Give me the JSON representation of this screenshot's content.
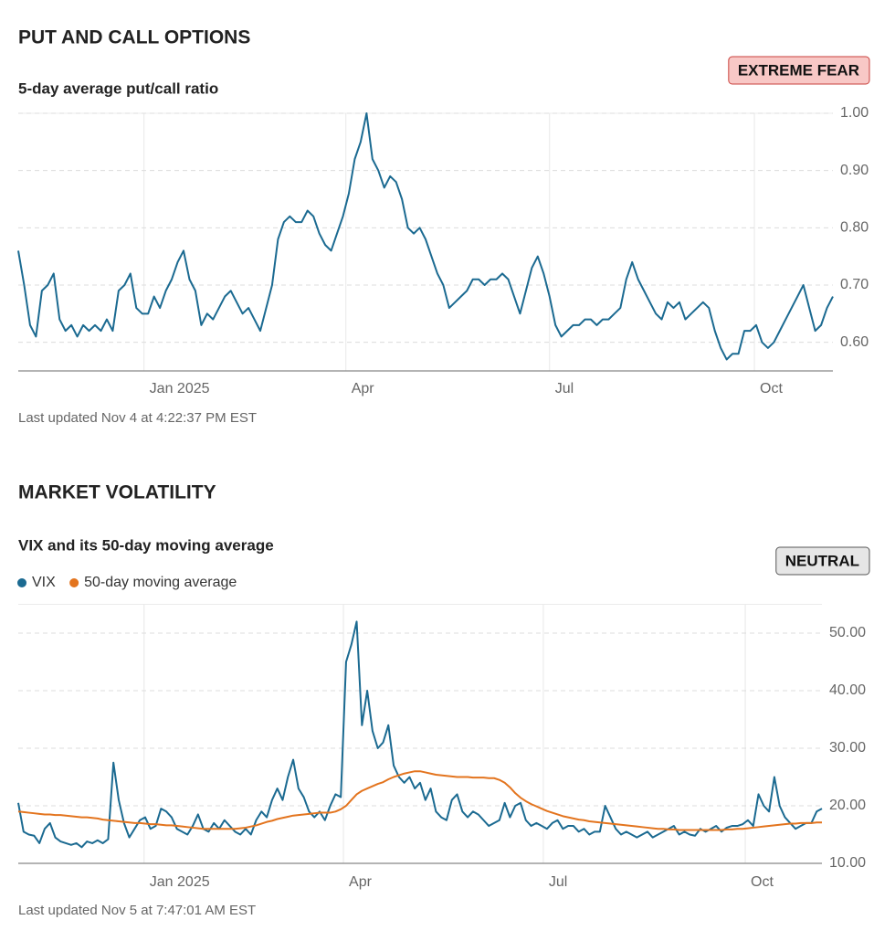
{
  "chart_data": [
    {
      "type": "line",
      "section": "PUT AND CALL OPTIONS",
      "title": "5-day average put/call ratio",
      "badge": "EXTREME FEAR",
      "color": "#1b6a91",
      "values": [
        0.76,
        0.7,
        0.63,
        0.61,
        0.69,
        0.7,
        0.72,
        0.64,
        0.62,
        0.63,
        0.61,
        0.63,
        0.62,
        0.63,
        0.62,
        0.64,
        0.62,
        0.69,
        0.7,
        0.72,
        0.66,
        0.65,
        0.65,
        0.68,
        0.66,
        0.69,
        0.71,
        0.74,
        0.76,
        0.71,
        0.69,
        0.63,
        0.65,
        0.64,
        0.66,
        0.68,
        0.69,
        0.67,
        0.65,
        0.66,
        0.64,
        0.62,
        0.66,
        0.7,
        0.78,
        0.81,
        0.82,
        0.81,
        0.81,
        0.83,
        0.82,
        0.79,
        0.77,
        0.76,
        0.79,
        0.82,
        0.86,
        0.92,
        0.95,
        1.0,
        0.92,
        0.9,
        0.87,
        0.89,
        0.88,
        0.85,
        0.8,
        0.79,
        0.8,
        0.78,
        0.75,
        0.72,
        0.7,
        0.66,
        0.67,
        0.68,
        0.69,
        0.71,
        0.71,
        0.7,
        0.71,
        0.71,
        0.72,
        0.71,
        0.68,
        0.65,
        0.69,
        0.73,
        0.75,
        0.72,
        0.68,
        0.63,
        0.61,
        0.62,
        0.63,
        0.63,
        0.64,
        0.64,
        0.63,
        0.64,
        0.64,
        0.65,
        0.66,
        0.71,
        0.74,
        0.71,
        0.69,
        0.67,
        0.65,
        0.64,
        0.67,
        0.66,
        0.67,
        0.64,
        0.65,
        0.66,
        0.67,
        0.66,
        0.62,
        0.59,
        0.57,
        0.58,
        0.58,
        0.62,
        0.62,
        0.63,
        0.6,
        0.59,
        0.6,
        0.62,
        0.64,
        0.66,
        0.68,
        0.7,
        0.66,
        0.62,
        0.63,
        0.66,
        0.68
      ],
      "xlim": [
        0,
        138
      ],
      "xticks": [
        {
          "value": 21.3,
          "label": "Jan 2025"
        },
        {
          "value": 55.5,
          "label": "Apr"
        },
        {
          "value": 90.0,
          "label": "Jul"
        },
        {
          "value": 124.7,
          "label": "Oct"
        }
      ],
      "ylim": [
        0.55,
        1.0
      ],
      "yticks": [
        {
          "value": 0.6,
          "label": "0.60"
        },
        {
          "value": 0.7,
          "label": "0.70"
        },
        {
          "value": 0.8,
          "label": "0.80"
        },
        {
          "value": 0.9,
          "label": "0.90"
        },
        {
          "value": 1.0,
          "label": "1.00"
        }
      ],
      "grid": true,
      "updated": "Last updated Nov 4 at 4:22:37 PM EST"
    },
    {
      "type": "line",
      "section": "MARKET VOLATILITY",
      "title": "VIX and its 50-day moving average",
      "badge": "NEUTRAL",
      "legend": "top-left",
      "series": [
        {
          "name": "VIX",
          "color": "#1b6a91",
          "values": [
            20.5,
            15.5,
            15,
            14.8,
            13.5,
            16,
            17,
            14.5,
            13.8,
            13.5,
            13.2,
            13.5,
            12.8,
            13.8,
            13.5,
            14,
            13.5,
            14.2,
            27.5,
            21,
            17,
            14.5,
            16,
            17.5,
            18,
            16,
            16.5,
            19.5,
            19,
            18,
            16,
            15.5,
            15,
            16.5,
            18.5,
            16,
            15.5,
            17,
            16,
            17.5,
            16.5,
            15.5,
            15,
            16,
            15,
            17.5,
            19,
            18,
            21,
            23,
            21,
            25,
            28,
            23,
            21.5,
            19,
            18,
            19,
            17.5,
            20,
            22,
            21.5,
            45,
            48,
            52,
            34,
            40,
            33,
            30,
            31,
            34,
            27,
            25,
            24,
            25,
            23,
            24,
            21,
            23,
            19,
            18,
            17.5,
            21,
            22,
            19,
            18,
            19,
            18.5,
            17.5,
            16.5,
            17,
            17.5,
            20.5,
            18,
            20,
            20.5,
            17.5,
            16.5,
            17,
            16.5,
            16,
            17,
            17.5,
            16,
            16.5,
            16.5,
            15.5,
            16,
            15,
            15.5,
            15.5,
            20,
            18,
            16,
            15,
            15.5,
            15,
            14.5,
            15,
            15.5,
            14.5,
            15,
            15.5,
            16,
            16.5,
            15,
            15.5,
            15,
            14.8,
            16,
            15.5,
            16,
            16.5,
            15.5,
            16.2,
            16.5,
            16.5,
            16.8,
            17.5,
            16.5,
            22,
            20,
            19,
            25,
            20,
            18,
            17,
            16,
            16.5,
            17,
            17,
            19,
            19.5
          ]
        },
        {
          "name": "50-day moving average",
          "color": "#e3741e",
          "values": [
            19.0,
            18.9,
            18.8,
            18.7,
            18.6,
            18.5,
            18.5,
            18.4,
            18.4,
            18.3,
            18.2,
            18.1,
            18.0,
            18.0,
            17.9,
            17.8,
            17.6,
            17.5,
            17.4,
            17.3,
            17.2,
            17.1,
            17.0,
            17.0,
            16.9,
            16.8,
            16.8,
            16.7,
            16.6,
            16.6,
            16.5,
            16.4,
            16.3,
            16.2,
            16.1,
            16.0,
            16.0,
            16.0,
            16.0,
            16.0,
            16.0,
            16.0,
            16.1,
            16.2,
            16.4,
            16.6,
            16.9,
            17.2,
            17.4,
            17.7,
            17.9,
            18.1,
            18.3,
            18.4,
            18.5,
            18.6,
            18.7,
            18.8,
            18.8,
            18.8,
            19.0,
            19.4,
            20.0,
            21.0,
            22.0,
            22.6,
            23.0,
            23.4,
            23.8,
            24.1,
            24.6,
            25.0,
            25.3,
            25.6,
            25.8,
            26.0,
            26.0,
            25.8,
            25.6,
            25.4,
            25.3,
            25.2,
            25.1,
            25.0,
            25.0,
            25.0,
            24.9,
            24.9,
            24.9,
            24.8,
            24.8,
            24.5,
            24.0,
            23.2,
            22.2,
            21.4,
            20.8,
            20.3,
            19.9,
            19.5,
            19.1,
            18.8,
            18.5,
            18.2,
            18.0,
            17.8,
            17.6,
            17.5,
            17.3,
            17.2,
            17.1,
            17.0,
            16.9,
            16.8,
            16.7,
            16.6,
            16.5,
            16.4,
            16.3,
            16.2,
            16.1,
            16.0,
            16.0,
            15.9,
            15.9,
            15.8,
            15.8,
            15.8,
            15.8,
            15.8,
            15.8,
            15.8,
            15.8,
            15.8,
            15.9,
            15.9,
            16.0,
            16.0,
            16.1,
            16.2,
            16.3,
            16.4,
            16.5,
            16.6,
            16.7,
            16.8,
            16.9,
            16.9,
            17.0,
            17.0,
            17.0,
            17.1,
            17.1
          ]
        }
      ],
      "xlim": [
        0,
        152
      ],
      "xticks": [
        {
          "value": 23.8,
          "label": "Jan 2025"
        },
        {
          "value": 61.5,
          "label": "Apr"
        },
        {
          "value": 99.3,
          "label": "Jul"
        },
        {
          "value": 137.5,
          "label": "Oct"
        }
      ],
      "ylim": [
        10,
        55
      ],
      "yticks": [
        {
          "value": 10,
          "label": "10.00"
        },
        {
          "value": 20,
          "label": "20.00"
        },
        {
          "value": 30,
          "label": "30.00"
        },
        {
          "value": 40,
          "label": "40.00"
        },
        {
          "value": 50,
          "label": "50.00"
        }
      ],
      "grid": true,
      "updated": "Last updated Nov 5 at 7:47:01 AM EST"
    }
  ]
}
